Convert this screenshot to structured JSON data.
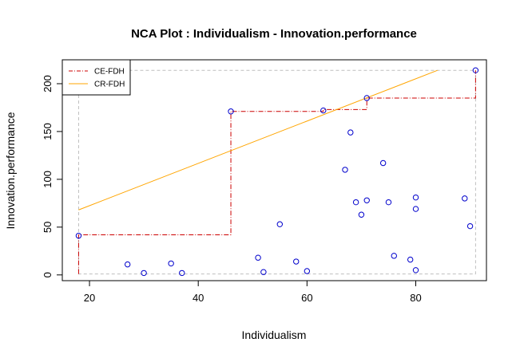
{
  "chart_data": {
    "type": "scatter",
    "title": "NCA Plot : Individualism - Innovation.performance",
    "xlabel": "Individualism",
    "ylabel": "Innovation.performance",
    "xlim": [
      15,
      93
    ],
    "ylim": [
      -6,
      225
    ],
    "x_ticks": [
      20,
      40,
      60,
      80
    ],
    "y_ticks": [
      0,
      50,
      100,
      150,
      200
    ],
    "scope_box": {
      "xmin": 18,
      "xmax": 91,
      "ymin": 1,
      "ymax": 214
    },
    "points": [
      {
        "x": 18,
        "y": 41
      },
      {
        "x": 27,
        "y": 11
      },
      {
        "x": 30,
        "y": 2
      },
      {
        "x": 35,
        "y": 12
      },
      {
        "x": 37,
        "y": 2
      },
      {
        "x": 46,
        "y": 171
      },
      {
        "x": 51,
        "y": 18
      },
      {
        "x": 52,
        "y": 3
      },
      {
        "x": 55,
        "y": 53
      },
      {
        "x": 58,
        "y": 14
      },
      {
        "x": 60,
        "y": 4
      },
      {
        "x": 63,
        "y": 172
      },
      {
        "x": 67,
        "y": 110
      },
      {
        "x": 68,
        "y": 149
      },
      {
        "x": 69,
        "y": 76
      },
      {
        "x": 70,
        "y": 63
      },
      {
        "x": 71,
        "y": 185
      },
      {
        "x": 71,
        "y": 78
      },
      {
        "x": 74,
        "y": 117
      },
      {
        "x": 75,
        "y": 76
      },
      {
        "x": 76,
        "y": 20
      },
      {
        "x": 79,
        "y": 16
      },
      {
        "x": 80,
        "y": 81
      },
      {
        "x": 80,
        "y": 69
      },
      {
        "x": 80,
        "y": 5
      },
      {
        "x": 89,
        "y": 80
      },
      {
        "x": 90,
        "y": 51
      },
      {
        "x": 91,
        "y": 214
      }
    ],
    "series": [
      {
        "name": "CE-FDH",
        "color": "#cc0000",
        "style": "dash-dot",
        "points": [
          [
            18,
            1
          ],
          [
            18,
            42
          ],
          [
            46,
            42
          ],
          [
            46,
            171
          ],
          [
            63,
            171
          ],
          [
            63,
            173
          ],
          [
            71,
            173
          ],
          [
            71,
            185
          ],
          [
            91,
            185
          ],
          [
            91,
            214
          ]
        ]
      },
      {
        "name": "CR-FDH",
        "color": "#ffa500",
        "style": "solid",
        "points": [
          [
            18,
            68
          ],
          [
            84,
            214
          ]
        ]
      }
    ],
    "point_color": "#0000cc",
    "grid": false,
    "legend_position": "top-left"
  }
}
